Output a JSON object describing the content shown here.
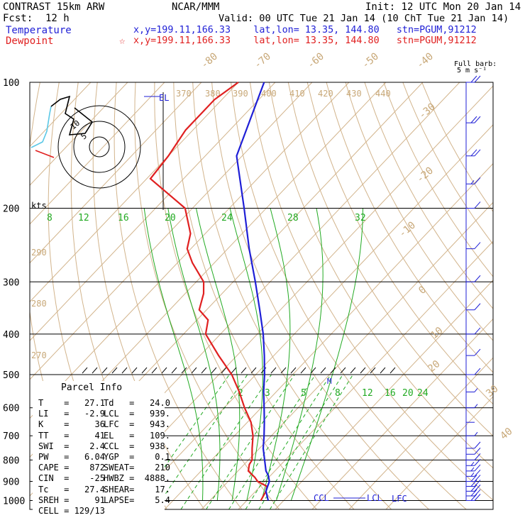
{
  "header": {
    "left_title": "CONTRAST 15km ARW",
    "fcst_label": "Fcst:",
    "fcst_value": "12 h",
    "center_title": "NCAR/MMM",
    "init": "Init: 12 UTC Mon 20 Jan 14",
    "valid": "Valid: 00 UTC Tue 21 Jan 14 (10 ChT Tue 21 Jan 14)",
    "temp_label": "Temperature",
    "temp_loc": "x,y=199.11,166.33    lat,lon= 13.35, 144.80   stn=PGUM,91212",
    "dew_label": "Dewpoint",
    "dew_marker": "☆",
    "dew_loc": "x,y=199.11,166.33    lat,lon= 13.35, 144.80   stn=PGUM,91212",
    "barb_note_1": "Full barb:",
    "barb_note_2": "5 m s⁻¹"
  },
  "chart_data": {
    "type": "skew-T log-P sounding",
    "pressure_levels": [
      100,
      200,
      300,
      400,
      500,
      600,
      700,
      800,
      900,
      1000
    ],
    "pressure_labels": [
      "100",
      "200",
      "300",
      "400",
      "500",
      "600",
      "700",
      "800",
      "900",
      "1000"
    ],
    "isotherm_labels": [
      "-80",
      "-70",
      "-60",
      "-50",
      "-40",
      "-30",
      "-20",
      "-10",
      "0",
      "10",
      "20",
      "30",
      "40"
    ],
    "theta_labels": [
      "370",
      "380",
      "390",
      "400",
      "410",
      "420",
      "430",
      "440",
      "290",
      "280",
      "270"
    ],
    "mixing_ratio_labels": [
      "2",
      "3",
      "5",
      "8",
      "12",
      "16",
      "20",
      "24"
    ],
    "hodograph_speed_labels": [
      "8",
      "12",
      "16",
      "20",
      "24",
      "28",
      "32"
    ],
    "hodograph_units": "kts",
    "hodograph_ring_labels": [
      "10",
      "5"
    ],
    "temperature": {
      "name": "Temperature",
      "color": "#1f1fd6",
      "p": [
        1000,
        950,
        925,
        900,
        870,
        850,
        800,
        750,
        700,
        650,
        600,
        550,
        500,
        450,
        400,
        350,
        300,
        250,
        200,
        150,
        100
      ],
      "t": [
        25.8,
        22.8,
        22.0,
        21.2,
        19.3,
        17.6,
        14.4,
        11.0,
        8.0,
        4.6,
        0.8,
        -3.4,
        -7.6,
        -12.6,
        -18.4,
        -25.6,
        -34.0,
        -44.2,
        -56.0,
        -71.5,
        -83.0
      ]
    },
    "dewpoint": {
      "name": "Dewpoint",
      "color": "#e02020",
      "p": [
        1000,
        950,
        925,
        900,
        880,
        850,
        820,
        800,
        750,
        700,
        650,
        600,
        550,
        500,
        450,
        400,
        370,
        350,
        320,
        300,
        270,
        250,
        230,
        200,
        170,
        150,
        130,
        110,
        100
      ],
      "td": [
        23.8,
        22.8,
        21.8,
        18.0,
        16.2,
        12.8,
        11.4,
        11.0,
        8.0,
        5.0,
        1.0,
        -4.5,
        -10.0,
        -16.5,
        -25.0,
        -34.0,
        -37.0,
        -42.0,
        -45.0,
        -48.0,
        -56.0,
        -61.0,
        -64.0,
        -72.0,
        -89.0,
        -90.0,
        -92.0,
        -92.0,
        -90.0
      ]
    },
    "wind_barbs": {
      "note": "speed m/s",
      "p": [
        1000,
        975,
        950,
        925,
        900,
        875,
        850,
        825,
        800,
        775,
        750,
        700,
        650,
        600,
        550,
        500,
        450,
        400,
        350,
        300,
        250,
        200,
        175,
        150,
        125,
        100
      ],
      "speed": [
        10,
        11,
        12,
        12,
        10,
        9,
        8,
        8,
        7,
        6,
        5,
        3,
        2,
        3,
        4,
        5,
        5,
        5,
        6,
        6,
        6,
        7,
        8,
        10,
        12,
        12
      ]
    },
    "parcel_markers": [
      "CCL",
      "LCL",
      "LFC",
      "EL",
      "M"
    ],
    "grid": true
  },
  "parcel_info": {
    "title": "Parcel Info",
    "rows": [
      [
        "T",
        "=",
        "27.1",
        "Td",
        "=",
        "24.0"
      ],
      [
        "LI",
        "=",
        "-2.9",
        "LCL",
        "=",
        "939."
      ],
      [
        "K",
        "=",
        "36",
        "LFC",
        "=",
        "943."
      ],
      [
        "TT",
        "=",
        "41",
        "EL",
        "=",
        "109."
      ],
      [
        "SWI",
        "=",
        "2.4",
        "CCL",
        "=",
        "938."
      ],
      [
        "PW",
        "=",
        "6.04",
        "YGP",
        "=",
        "0.1"
      ],
      [
        "CAPE",
        "=",
        "872",
        "SWEAT",
        "=",
        "210"
      ],
      [
        "CIN",
        "=",
        "-25",
        "HWBZ",
        "=",
        "4888."
      ],
      [
        "Tc",
        "=",
        "27.4",
        "SHEAR",
        "=",
        "17."
      ],
      [
        "SREH",
        "=",
        "91",
        "LAPSE",
        "=",
        "5.4"
      ],
      [
        "CELL",
        "=",
        "129/13",
        "",
        "",
        ""
      ]
    ]
  }
}
